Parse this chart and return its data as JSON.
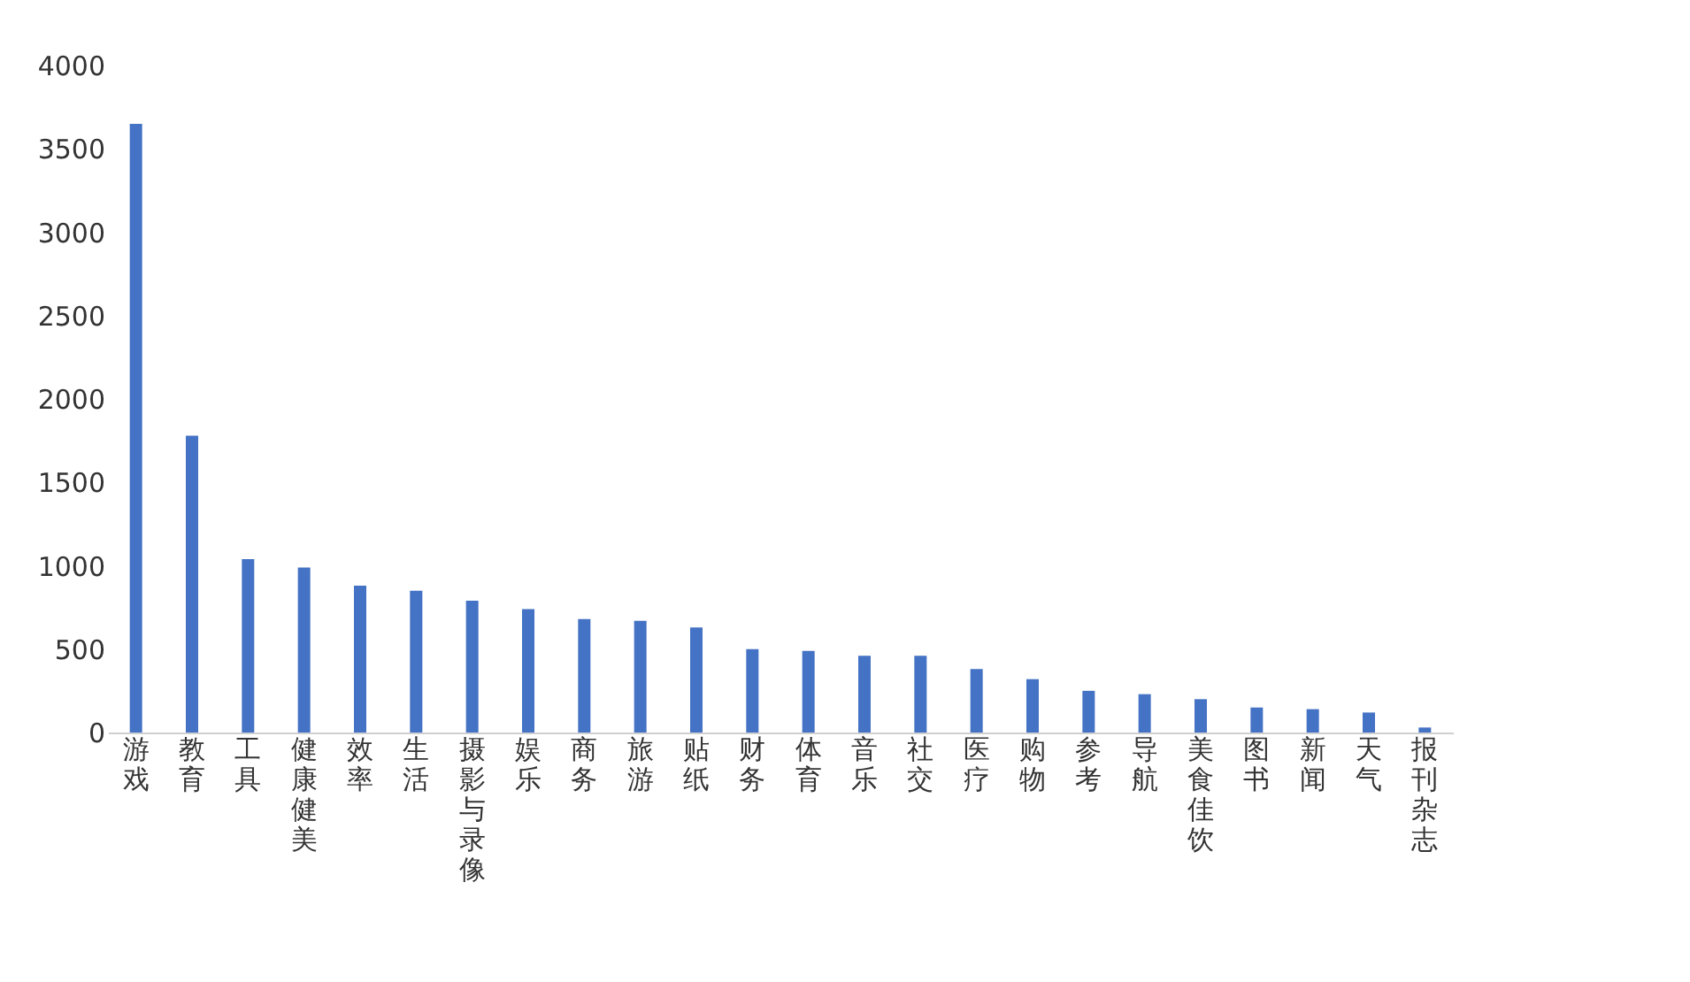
{
  "chart_data": {
    "type": "bar",
    "categories": [
      "游戏",
      "教育",
      "工具",
      "健康健美",
      "效率",
      "生活",
      "摄影与录像",
      "娱乐",
      "商务",
      "旅游",
      "贴纸",
      "财务",
      "体育",
      "音乐",
      "社交",
      "医疗",
      "购物",
      "参考",
      "导航",
      "美食佳饮",
      "图书",
      "新闻",
      "天气",
      "报刊杂志"
    ],
    "values": [
      3650,
      1780,
      1040,
      990,
      880,
      850,
      790,
      740,
      680,
      670,
      630,
      500,
      490,
      460,
      460,
      380,
      320,
      250,
      230,
      200,
      150,
      140,
      120,
      30
    ],
    "color": "#4472c4",
    "ylim": [
      0,
      4000
    ],
    "yticks": [
      0,
      500,
      1000,
      1500,
      2000,
      2500,
      3000,
      3500,
      4000
    ],
    "grid": false
  }
}
